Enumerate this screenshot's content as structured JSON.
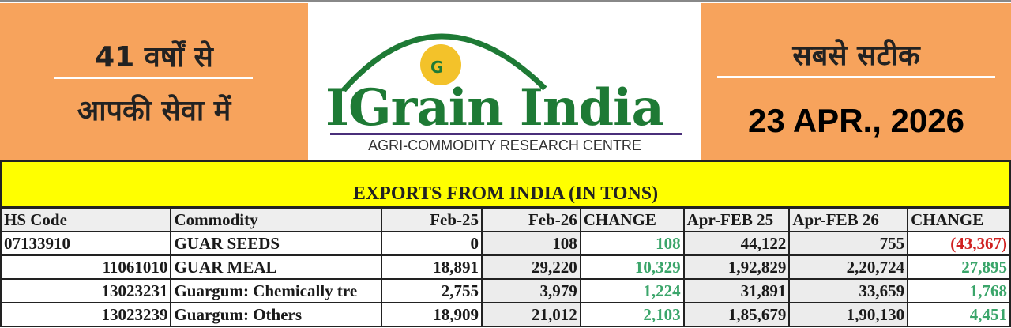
{
  "header": {
    "left_line1": "41 वर्षों से",
    "left_line2": "आपकी सेवा में",
    "right_line1": "सबसे सटीक",
    "date": "23 APR., 2026",
    "logo_text": "IGrain India",
    "logo_sub": "AGRI-COMMODITY RESEARCH CENTRE"
  },
  "table": {
    "title": "EXPORTS FROM INDIA (IN TONS)",
    "columns": [
      "HS Code",
      "Commodity",
      "Feb-25",
      "Feb-26",
      "CHANGE",
      "Apr-FEB 25",
      "Apr-FEB 26",
      "CHANGE"
    ],
    "rows": [
      [
        "07133910",
        "GUAR SEEDS",
        "0",
        "108",
        "108",
        "44,122",
        "755",
        "(43,367)"
      ],
      [
        "11061010",
        "GUAR MEAL",
        "18,891",
        "29,220",
        "10,329",
        "1,92,829",
        "2,20,724",
        "27,895"
      ],
      [
        "13023231",
        "Guargum: Chemically tre",
        "2,755",
        "3,979",
        "1,224",
        "31,891",
        "33,659",
        "1,768"
      ],
      [
        "13023239",
        "Guargum: Others",
        "18,909",
        "21,012",
        "2,103",
        "1,85,679",
        "1,90,130",
        "4,451"
      ]
    ]
  },
  "colors": {
    "orange": "#f7a35c",
    "yellow": "#ffff00",
    "positive": "#3aa56a",
    "negative": "#d02020",
    "logo_green": "#1e7a35"
  }
}
